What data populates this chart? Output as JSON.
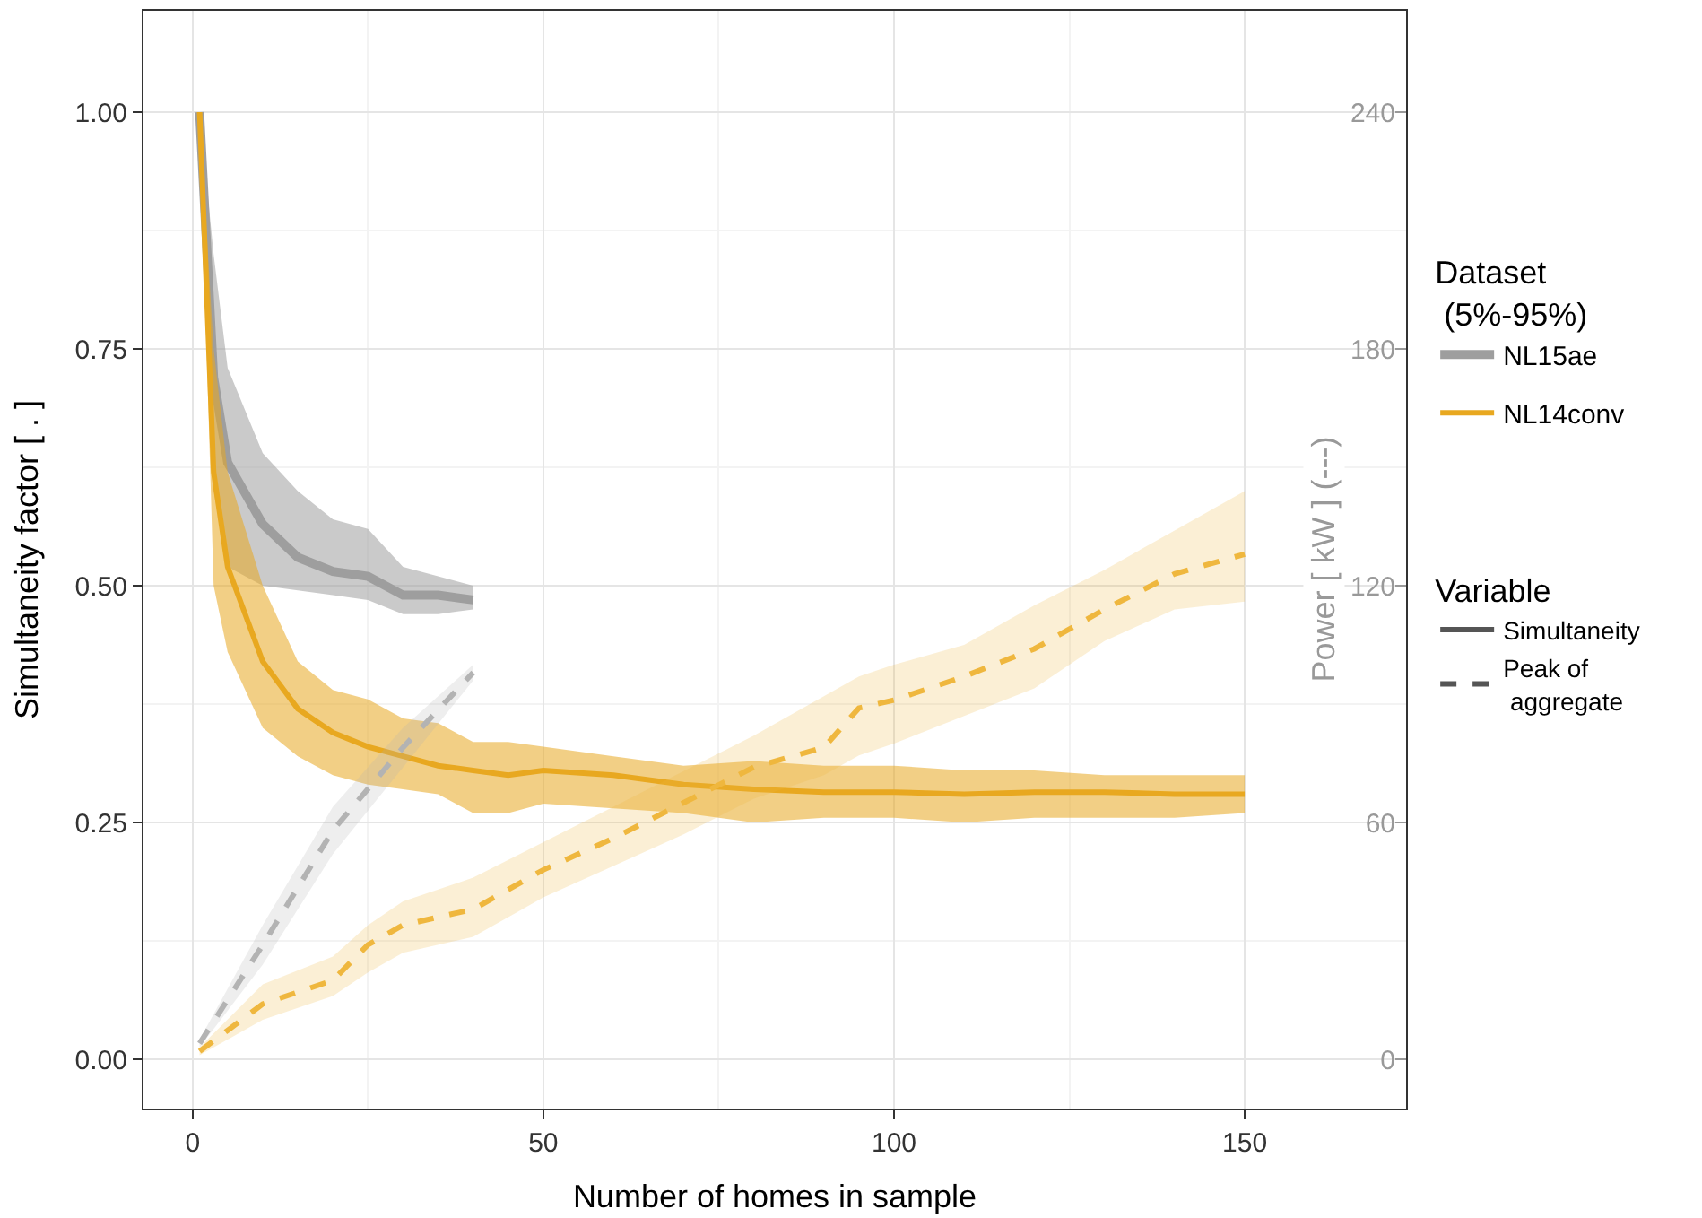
{
  "chart_data": {
    "type": "line",
    "xlabel": "Number of homes in sample",
    "ylabel": "Simultaneity factor [ . ]",
    "y2label": "Power [ kW ] (---)",
    "legend_title": "Dataset\n (5%-95%)",
    "annotations": [
      "Variable",
      "Simultaneity",
      "Peak of\n aggregate"
    ],
    "xlim": [
      -7,
      173
    ],
    "xticks": [
      0,
      50,
      100,
      150
    ],
    "ylim": [
      -0.052,
      1.107
    ],
    "yticks": [
      {
        "value": 0,
        "label": "0.00"
      },
      {
        "value": 0.25,
        "label": "0.25"
      },
      {
        "value": 0.5,
        "label": "0.50"
      },
      {
        "value": 0.75,
        "label": "0.75"
      },
      {
        "value": 1,
        "label": "1.00"
      }
    ],
    "y2lim": [
      -12.5,
      265.7
    ],
    "y2ticks": [
      0,
      60,
      120,
      180,
      240
    ],
    "grid": true,
    "legend": "right",
    "marker": "none",
    "series": [
      {
        "name": "NL15ae",
        "color": "#9e9e9e",
        "line_style": "solid",
        "x": [
          1,
          3,
          5,
          10,
          15,
          20,
          25,
          30,
          35,
          40
        ],
        "values": [
          1.0,
          0.72,
          0.63,
          0.565,
          0.53,
          0.515,
          0.51,
          0.49,
          0.49,
          0.485
        ],
        "lower": [
          1.0,
          0.6,
          0.52,
          0.5,
          0.495,
          0.49,
          0.485,
          0.47,
          0.47,
          0.475
        ],
        "upper": [
          1.0,
          0.85,
          0.73,
          0.64,
          0.6,
          0.57,
          0.56,
          0.52,
          0.51,
          0.5
        ]
      },
      {
        "name": "NL14conv",
        "color": "#e8a820",
        "line_style": "solid",
        "x": [
          1,
          3,
          5,
          10,
          15,
          20,
          25,
          30,
          35,
          40,
          45,
          50,
          60,
          70,
          80,
          90,
          100,
          110,
          120,
          130,
          140,
          150
        ],
        "values": [
          1.0,
          0.62,
          0.52,
          0.42,
          0.37,
          0.345,
          0.33,
          0.32,
          0.31,
          0.305,
          0.3,
          0.305,
          0.3,
          0.29,
          0.285,
          0.282,
          0.282,
          0.28,
          0.282,
          0.282,
          0.28,
          0.28
        ],
        "lower": [
          1.0,
          0.5,
          0.43,
          0.35,
          0.32,
          0.3,
          0.29,
          0.285,
          0.28,
          0.26,
          0.26,
          0.27,
          0.265,
          0.26,
          0.25,
          0.255,
          0.255,
          0.25,
          0.255,
          0.255,
          0.255,
          0.26
        ],
        "upper": [
          1.0,
          0.75,
          0.62,
          0.5,
          0.42,
          0.39,
          0.38,
          0.36,
          0.355,
          0.335,
          0.335,
          0.33,
          0.32,
          0.31,
          0.315,
          0.31,
          0.31,
          0.305,
          0.305,
          0.3,
          0.3,
          0.3
        ]
      },
      {
        "color": "#b3b3b3",
        "line_style": "dashed",
        "axis": "y2",
        "x": [
          1,
          10,
          20,
          30,
          40
        ],
        "values": [
          4,
          29,
          58,
          79,
          98
        ],
        "lower": [
          3,
          24,
          52,
          74,
          96
        ],
        "upper": [
          5,
          34,
          64,
          84,
          100
        ]
      },
      {
        "color": "#efb73e",
        "line_style": "dashed",
        "axis": "y2",
        "x": [
          1,
          10,
          20,
          25,
          30,
          40,
          50,
          60,
          70,
          80,
          90,
          95,
          100,
          110,
          120,
          130,
          140,
          150
        ],
        "values": [
          2,
          14,
          20,
          29,
          34,
          38,
          48,
          56,
          65,
          74,
          79,
          89,
          91,
          97,
          104,
          114,
          123,
          128
        ],
        "lower": [
          1,
          10,
          16,
          22,
          27,
          31,
          41,
          49,
          57,
          66,
          72,
          77,
          80,
          87,
          94,
          106,
          114,
          116
        ],
        "upper": [
          3,
          19,
          26,
          34,
          40,
          46,
          55,
          64,
          73,
          82,
          92,
          97,
          100,
          105,
          115,
          124,
          134,
          144
        ]
      }
    ]
  }
}
